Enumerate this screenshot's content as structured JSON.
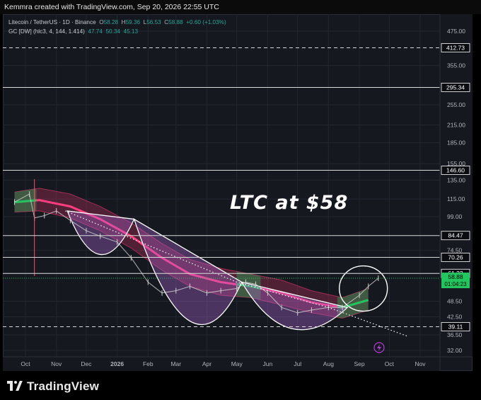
{
  "header": {
    "text": "Kemmra created with TradingView.com, Sep 20, 2026 22:55 UTC"
  },
  "legend": {
    "symbol": "Litecoin / TetherUS · 1D · Binance",
    "o_label": "O",
    "o_value": "58.28",
    "h_label": "H",
    "h_value": "59.36",
    "l_label": "L",
    "l_value": "56.53",
    "c_label": "C",
    "c_value": "58.88",
    "change": "+0.60 (+1.03%)",
    "indicator": "GC [DW] (hlc3, 4, 144, 1.414)",
    "ind_v1": "47.74",
    "ind_v2": "50.34",
    "ind_v3": "45.13"
  },
  "annotation": "LTC at $58",
  "footer": {
    "brand": "TradingView"
  },
  "colors": {
    "background": "#16181f",
    "level_line": "#d9d9d9",
    "band_pink": "#e8356e",
    "band_green": "#21c55d",
    "price_label": "#22c55e",
    "candle": "#cfcfcf"
  },
  "chart_data": {
    "type": "line",
    "symbol": "Litecoin / TetherUS",
    "scale": "log",
    "ylim": [
      31,
      520
    ],
    "y_ticks": [
      475.0,
      355.0,
      295.0,
      255.0,
      215.0,
      185.0,
      155.0,
      135.0,
      115.0,
      99.0,
      74.5,
      61.5,
      48.5,
      42.5,
      36.5,
      32.0
    ],
    "x_ticks": [
      "Oct",
      "Nov",
      "Dec",
      "2026",
      "Feb",
      "Mar",
      "Apr",
      "May",
      "Jun",
      "Jul",
      "Aug",
      "Sep",
      "Oct",
      "Nov"
    ],
    "levels": [
      412.73,
      295.34,
      146.6,
      84.47,
      70.26,
      61.33,
      39.11
    ],
    "dashed_levels": [
      412.73,
      39.11
    ],
    "last_price": 58.88,
    "countdown": "01:04:23",
    "price_series": {
      "x": [
        "2025-09-20",
        "2025-10-05",
        "2025-10-10",
        "2025-10-20",
        "2025-11-01",
        "2025-11-15",
        "2025-12-01",
        "2025-12-15",
        "2026-01-01",
        "2026-01-15",
        "2026-02-01",
        "2026-02-15",
        "2026-03-01",
        "2026-03-15",
        "2026-04-01",
        "2026-04-15",
        "2026-05-01",
        "2026-05-10",
        "2026-05-20",
        "2026-06-01",
        "2026-06-15",
        "2026-07-01",
        "2026-07-15",
        "2026-08-01",
        "2026-08-15",
        "2026-09-01",
        "2026-09-10",
        "2026-09-20"
      ],
      "values": [
        112,
        120,
        98,
        100,
        104,
        96,
        88,
        84,
        80,
        70,
        57,
        52,
        53,
        55,
        52,
        53,
        54,
        57,
        56,
        52,
        46,
        44,
        45,
        46,
        46,
        51,
        55,
        58.9
      ]
    },
    "band": {
      "x": [
        "2025-09-20",
        "2025-10-15",
        "2025-11-15",
        "2025-12-15",
        "2026-01-15",
        "2026-02-15",
        "2026-03-15",
        "2026-04-15",
        "2026-05-15",
        "2026-06-15",
        "2026-07-15",
        "2026-08-15",
        "2026-09-10"
      ],
      "mid": [
        112,
        114,
        108,
        97,
        84,
        70,
        61,
        57,
        55,
        52,
        48,
        46,
        49
      ],
      "upper": [
        122,
        126,
        120,
        108,
        94,
        79,
        69,
        64,
        61,
        58,
        53,
        50,
        54
      ],
      "lower": [
        103,
        104,
        98,
        88,
        76,
        63,
        55,
        51,
        50,
        47,
        44,
        42,
        45
      ],
      "green_segments": [
        [
          "2025-09-20",
          "2025-10-12"
        ],
        [
          "2026-05-01",
          "2026-05-25"
        ],
        [
          "2026-08-10",
          "2026-09-10"
        ]
      ]
    },
    "trendline": {
      "x": [
        "2025-11-10",
        "2026-05-01",
        "2026-08-01",
        "2026-10-20"
      ],
      "values": [
        104,
        57,
        46,
        36
      ]
    },
    "arcs": [
      {
        "x": [
          "2025-11-12",
          "2025-12-15",
          "2026-01-18"
        ],
        "values": [
          104,
          72,
          97
        ]
      },
      {
        "x": [
          "2026-01-18",
          "2026-03-15",
          "2026-05-06"
        ],
        "values": [
          97,
          41,
          57
        ]
      },
      {
        "x": [
          "2026-05-06",
          "2026-06-25",
          "2026-08-20"
        ],
        "values": [
          57,
          38.5,
          46
        ]
      }
    ],
    "circle": {
      "x": "2026-09-05",
      "value": 54
    }
  }
}
